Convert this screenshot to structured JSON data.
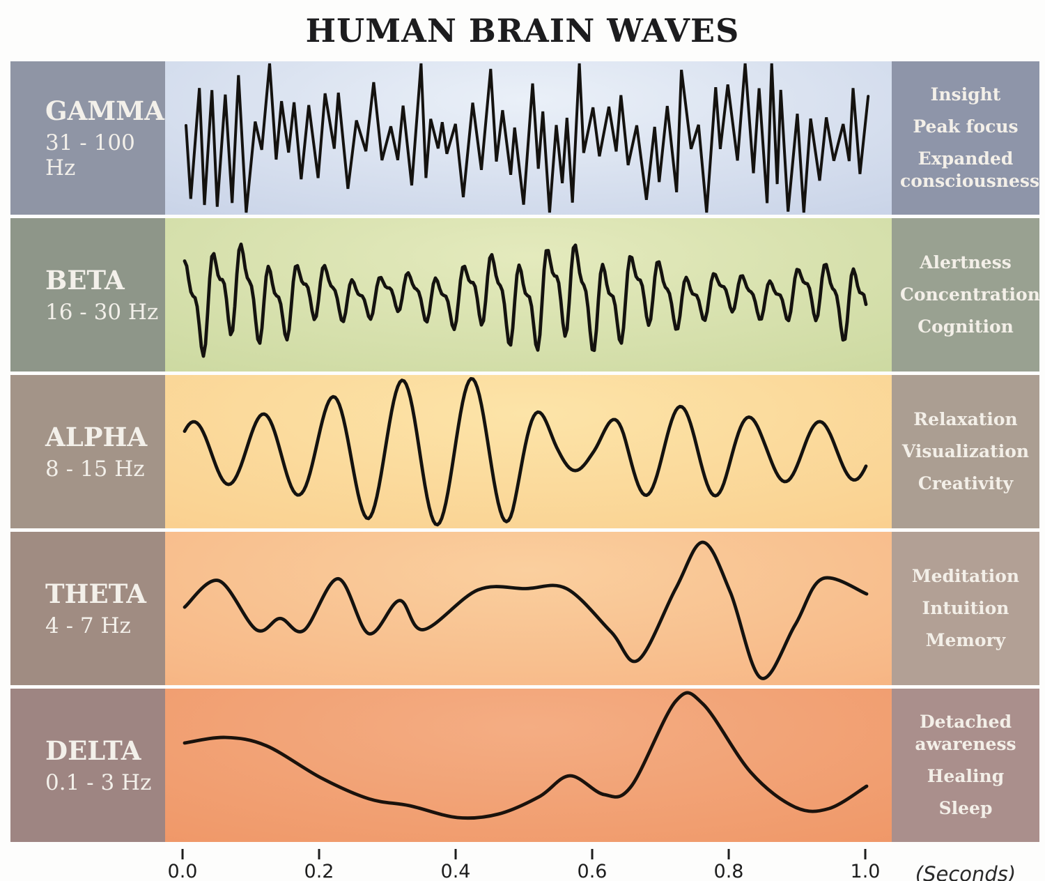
{
  "title": "HUMAN BRAIN WAVES",
  "axis": {
    "ticks": [
      "0.0",
      "0.2",
      "0.4",
      "0.6",
      "0.8",
      "1.0"
    ],
    "unit_label": "(Seconds)"
  },
  "bands": [
    {
      "id": "gamma",
      "name": "GAMMA",
      "range": "31 - 100 Hz",
      "traits": [
        "Insight",
        "Peak focus",
        "Expanded consciousness"
      ],
      "colors": {
        "label_bg": "#8f95a5",
        "traits_bg": "#8e95a9",
        "wave_bg": [
          "#eaf0f8",
          "#ccd6e9",
          "#b4c1da"
        ],
        "stroke": "#14120f"
      },
      "wave": {
        "style": "zigzag",
        "seed": 9,
        "min_amp": 15,
        "max_amp": 92,
        "spike_amp": 107,
        "spike_chance": 0.07
      }
    },
    {
      "id": "beta",
      "name": "BETA",
      "range": "16 - 30 Hz",
      "traits": [
        "Alertness",
        "Concentration",
        "Cognition"
      ],
      "colors": {
        "label_bg": "#8e9689",
        "traits_bg": "#99a191",
        "wave_bg": [
          "#e4eabd",
          "#cfdba4",
          "#bdd092"
        ],
        "stroke": "#14120f"
      },
      "wave": {
        "style": "harmonic",
        "cycles": 24.5,
        "base_amp": 90
      }
    },
    {
      "id": "alpha",
      "name": "ALPHA",
      "range": "8 - 15 Hz",
      "traits": [
        "Relaxation",
        "Visualization",
        "Creativity"
      ],
      "colors": {
        "label_bg": "#a39488",
        "traits_bg": "#ab9e92",
        "wave_bg": [
          "#fce4a8",
          "#fad292",
          "#f7bd7e"
        ],
        "stroke": "#14120f"
      },
      "wave": {
        "style": "am_sine",
        "cycles": 9.8,
        "phase": -5.51,
        "amp": 105,
        "envelope": [
          [
            0,
            0.4
          ],
          [
            0.08,
            0.46
          ],
          [
            0.17,
            0.6
          ],
          [
            0.27,
            0.92
          ],
          [
            0.34,
            1.0
          ],
          [
            0.42,
            1.0
          ],
          [
            0.48,
            0.95
          ],
          [
            0.545,
            0.3
          ],
          [
            0.6,
            0.22
          ],
          [
            0.645,
            0.58
          ],
          [
            0.72,
            0.62
          ],
          [
            0.79,
            0.6
          ],
          [
            0.85,
            0.4
          ],
          [
            0.91,
            0.42
          ],
          [
            1.0,
            0.38
          ]
        ]
      }
    },
    {
      "id": "theta",
      "name": "THETA",
      "range": "4 - 7 Hz",
      "traits": [
        "Meditation",
        "Intuition",
        "Memory"
      ],
      "colors": {
        "label_bg": "#a08c82",
        "traits_bg": "#b2a095",
        "wave_bg": [
          "#facf9e",
          "#f7b887",
          "#f2a168"
        ],
        "stroke": "#14120f"
      },
      "wave": {
        "style": "spline",
        "amp": 95,
        "points": [
          [
            0,
            0.02
          ],
          [
            0.05,
            0.42
          ],
          [
            0.105,
            -0.32
          ],
          [
            0.14,
            -0.15
          ],
          [
            0.175,
            -0.33
          ],
          [
            0.225,
            0.45
          ],
          [
            0.27,
            -0.38
          ],
          [
            0.315,
            0.12
          ],
          [
            0.35,
            -0.32
          ],
          [
            0.43,
            0.28
          ],
          [
            0.5,
            0.3
          ],
          [
            0.56,
            0.3
          ],
          [
            0.625,
            -0.35
          ],
          [
            0.665,
            -0.78
          ],
          [
            0.72,
            0.3
          ],
          [
            0.76,
            1.0
          ],
          [
            0.8,
            0.25
          ],
          [
            0.845,
            -1.05
          ],
          [
            0.895,
            -0.25
          ],
          [
            0.935,
            0.45
          ],
          [
            1.0,
            0.22
          ]
        ]
      }
    },
    {
      "id": "delta",
      "name": "DELTA",
      "range": "0.1 - 3 Hz",
      "traits": [
        "Detached awareness",
        "Healing",
        "Sleep"
      ],
      "colors": {
        "label_bg": "#9e8582",
        "traits_bg": "#aa8f8c",
        "wave_bg": [
          "#f4ad83",
          "#f09a6b",
          "#e88956"
        ],
        "stroke": "#1a120c"
      },
      "wave": {
        "style": "spline",
        "amp": 100,
        "points": [
          [
            0,
            0.32
          ],
          [
            0.06,
            0.4
          ],
          [
            0.12,
            0.28
          ],
          [
            0.2,
            -0.18
          ],
          [
            0.27,
            -0.48
          ],
          [
            0.33,
            -0.58
          ],
          [
            0.4,
            -0.75
          ],
          [
            0.46,
            -0.7
          ],
          [
            0.52,
            -0.45
          ],
          [
            0.565,
            -0.15
          ],
          [
            0.615,
            -0.42
          ],
          [
            0.655,
            -0.3
          ],
          [
            0.72,
            0.92
          ],
          [
            0.76,
            0.88
          ],
          [
            0.83,
            -0.1
          ],
          [
            0.895,
            -0.6
          ],
          [
            0.945,
            -0.62
          ],
          [
            1.0,
            -0.3
          ]
        ]
      }
    }
  ]
}
